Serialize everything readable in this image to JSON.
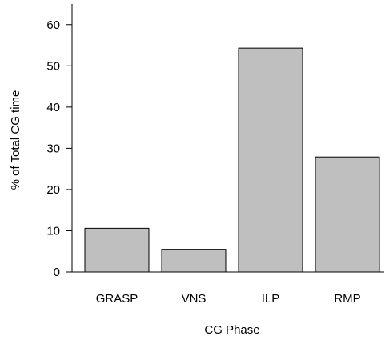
{
  "chart_data": {
    "type": "bar",
    "title": "",
    "xlabel": "CG Phase",
    "ylabel": "% of Total CG time",
    "categories": [
      "GRASP",
      "VNS",
      "ILP",
      "RMP"
    ],
    "values": [
      10.6,
      5.5,
      54.3,
      27.9
    ],
    "ylim": [
      0,
      65
    ],
    "yticks": [
      0,
      10,
      20,
      30,
      40,
      50,
      60
    ],
    "bar_color": "#bfbfbf",
    "grid": false,
    "legend": "none"
  }
}
